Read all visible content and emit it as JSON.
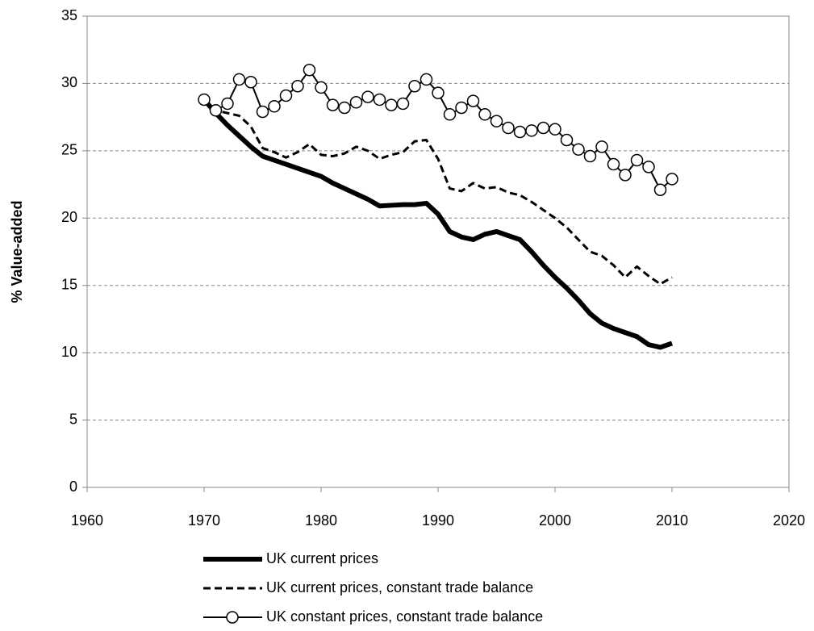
{
  "chart_data": {
    "type": "line",
    "y_label": "% Value-added",
    "x": [
      1970,
      1971,
      1972,
      1973,
      1974,
      1975,
      1976,
      1977,
      1978,
      1979,
      1980,
      1981,
      1982,
      1983,
      1984,
      1985,
      1986,
      1987,
      1988,
      1989,
      1990,
      1991,
      1992,
      1993,
      1994,
      1995,
      1996,
      1997,
      1998,
      1999,
      2000,
      2001,
      2002,
      2003,
      2004,
      2005,
      2006,
      2007,
      2008,
      2009,
      2010
    ],
    "series": [
      {
        "name": "UK current prices",
        "color": "#000000",
        "style": "thick",
        "values": [
          28.8,
          27.8,
          26.9,
          26.1,
          25.3,
          24.6,
          24.3,
          24.0,
          23.7,
          23.4,
          23.1,
          22.6,
          22.2,
          21.8,
          21.4,
          20.9,
          20.95,
          21.0,
          21.0,
          21.1,
          20.3,
          19.0,
          18.6,
          18.4,
          18.8,
          19.0,
          18.7,
          18.4,
          17.5,
          16.5,
          15.6,
          14.8,
          13.9,
          12.9,
          12.2,
          11.8,
          11.5,
          11.2,
          10.6,
          10.4,
          10.7
        ]
      },
      {
        "name": "UK current prices, constant trade balance",
        "color": "#000000",
        "style": "dashed",
        "values": [
          28.8,
          28.0,
          27.8,
          27.6,
          26.8,
          25.2,
          24.9,
          24.5,
          24.9,
          25.5,
          24.7,
          24.6,
          24.8,
          25.3,
          25.0,
          24.4,
          24.7,
          24.9,
          25.7,
          25.8,
          24.4,
          22.2,
          22.0,
          22.6,
          22.2,
          22.3,
          21.9,
          21.7,
          21.2,
          20.6,
          20.0,
          19.3,
          18.4,
          17.5,
          17.2,
          16.5,
          15.6,
          16.4,
          15.7,
          15.1,
          15.6
        ]
      },
      {
        "name": "UK constant prices, constant trade balance",
        "color": "#000000",
        "style": "circles",
        "values": [
          28.8,
          28.0,
          28.5,
          30.3,
          30.1,
          27.9,
          28.3,
          29.1,
          29.8,
          31.0,
          29.7,
          28.4,
          28.2,
          28.6,
          29.0,
          28.8,
          28.4,
          28.5,
          29.8,
          30.3,
          29.3,
          27.7,
          28.2,
          28.7,
          27.7,
          27.2,
          26.7,
          26.4,
          26.5,
          26.7,
          26.6,
          25.8,
          25.1,
          24.6,
          25.3,
          24.0,
          23.2,
          24.3,
          23.8,
          22.1,
          22.9
        ]
      }
    ],
    "xlim": [
      1960,
      2020
    ],
    "xticks": [
      1960,
      1970,
      1980,
      1990,
      2000,
      2010,
      2020
    ],
    "ylim": [
      0,
      35
    ],
    "yticks": [
      0,
      5,
      10,
      15,
      20,
      25,
      30,
      35
    ],
    "grid": true,
    "legend": "bottom"
  }
}
